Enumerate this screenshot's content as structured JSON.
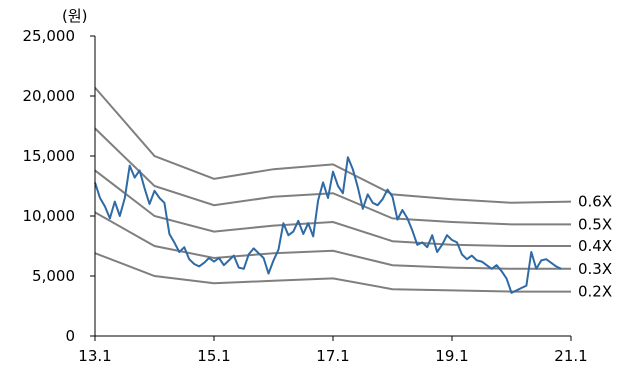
{
  "chart_data": {
    "type": "line",
    "ylabel": "(원)",
    "xlabel": "",
    "ylim": [
      0,
      25000
    ],
    "xlim": [
      "2013-01",
      "2021-01"
    ],
    "x_ticks": [
      "13.1",
      "15.1",
      "17.1",
      "19.1",
      "21.1"
    ],
    "y_ticks": [
      "0",
      "5,000",
      "10,000",
      "15,000",
      "20,000",
      "25,000"
    ],
    "grid": false,
    "band_color": "#7f7f7f",
    "price_color": "#2e6aa6",
    "bands": [
      {
        "name": "0.6X",
        "x": [
          "2013-01",
          "2014-01",
          "2015-01",
          "2016-01",
          "2017-01",
          "2018-01",
          "2019-01",
          "2020-01",
          "2021-01"
        ],
        "values": [
          20700,
          15000,
          13100,
          13900,
          14300,
          11800,
          11400,
          11100,
          11200
        ]
      },
      {
        "name": "0.5X",
        "x": [
          "2013-01",
          "2014-01",
          "2015-01",
          "2016-01",
          "2017-01",
          "2018-01",
          "2019-01",
          "2020-01",
          "2021-01"
        ],
        "values": [
          17300,
          12500,
          10900,
          11600,
          11900,
          9800,
          9500,
          9300,
          9300
        ]
      },
      {
        "name": "0.4X",
        "x": [
          "2013-01",
          "2014-01",
          "2015-01",
          "2016-01",
          "2017-01",
          "2018-01",
          "2019-01",
          "2020-01",
          "2021-01"
        ],
        "values": [
          13800,
          10000,
          8700,
          9200,
          9500,
          7900,
          7600,
          7500,
          7500
        ]
      },
      {
        "name": "0.3X",
        "x": [
          "2013-01",
          "2014-01",
          "2015-01",
          "2016-01",
          "2017-01",
          "2018-01",
          "2019-01",
          "2020-01",
          "2021-01"
        ],
        "values": [
          10300,
          7500,
          6500,
          6900,
          7100,
          5900,
          5700,
          5600,
          5600
        ]
      },
      {
        "name": "0.2X",
        "x": [
          "2013-01",
          "2014-01",
          "2015-01",
          "2016-01",
          "2017-01",
          "2018-01",
          "2019-01",
          "2020-01",
          "2021-01"
        ],
        "values": [
          6900,
          5000,
          4400,
          4600,
          4800,
          3900,
          3800,
          3700,
          3700
        ]
      }
    ],
    "series": [
      {
        "x": [
          "2013-01",
          "2013-02",
          "2013-03",
          "2013-04",
          "2013-05",
          "2013-06",
          "2013-07",
          "2013-08",
          "2013-09",
          "2013-10",
          "2013-11",
          "2013-12",
          "2014-01",
          "2014-02",
          "2014-03",
          "2014-04",
          "2014-05",
          "2014-06",
          "2014-07",
          "2014-08",
          "2014-09",
          "2014-10",
          "2014-11",
          "2014-12",
          "2015-01",
          "2015-02",
          "2015-03",
          "2015-04",
          "2015-05",
          "2015-06",
          "2015-07",
          "2015-08",
          "2015-09",
          "2015-10",
          "2015-11",
          "2015-12",
          "2016-01",
          "2016-02",
          "2016-03",
          "2016-04",
          "2016-05",
          "2016-06",
          "2016-07",
          "2016-08",
          "2016-09",
          "2016-10",
          "2016-11",
          "2016-12",
          "2017-01",
          "2017-02",
          "2017-03",
          "2017-04",
          "2017-05",
          "2017-06",
          "2017-07",
          "2017-08",
          "2017-09",
          "2017-10",
          "2017-11",
          "2017-12",
          "2018-01",
          "2018-02",
          "2018-03",
          "2018-04",
          "2018-05",
          "2018-06",
          "2018-07",
          "2018-08",
          "2018-09",
          "2018-10",
          "2018-11",
          "2018-12",
          "2019-01",
          "2019-02",
          "2019-03",
          "2019-04",
          "2019-05",
          "2019-06",
          "2019-07",
          "2019-08",
          "2019-09",
          "2019-10",
          "2019-11",
          "2019-12",
          "2020-01",
          "2020-02",
          "2020-03",
          "2020-04",
          "2020-05",
          "2020-06",
          "2020-07",
          "2020-08",
          "2020-09",
          "2020-10",
          "2020-11"
        ],
        "values": [
          12800,
          11500,
          10800,
          9800,
          11200,
          10000,
          11500,
          14200,
          13200,
          13800,
          12300,
          11000,
          12100,
          11500,
          11100,
          8500,
          7800,
          7000,
          7400,
          6400,
          6000,
          5800,
          6100,
          6500,
          6200,
          6500,
          5900,
          6300,
          6700,
          5700,
          5600,
          6800,
          7300,
          6900,
          6500,
          5200,
          6300,
          7200,
          9400,
          8400,
          8700,
          9600,
          8500,
          9400,
          8300,
          11300,
          12800,
          11500,
          13700,
          12500,
          11900,
          14900,
          13900,
          12400,
          10600,
          11800,
          11100,
          10900,
          11400,
          12200,
          11600,
          9700,
          10500,
          9800,
          8800,
          7600,
          7800,
          7400,
          8400,
          7000,
          7600,
          8400,
          8000,
          7800,
          6800,
          6400,
          6700,
          6300,
          6200,
          5900,
          5600,
          5900,
          5400,
          4800,
          3600,
          3800,
          4000,
          4200,
          7000,
          5600,
          6300,
          6400,
          6100,
          5800,
          5600
        ]
      }
    ]
  }
}
